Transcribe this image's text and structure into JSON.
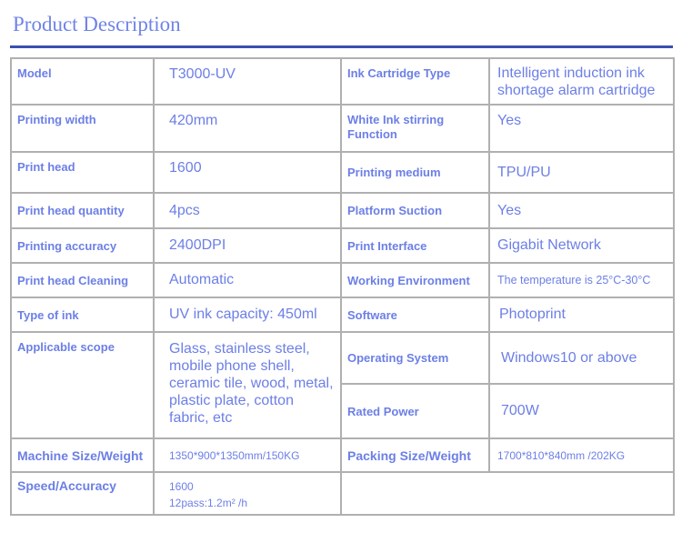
{
  "title": "Product Description",
  "rows": [
    {
      "l1": "Model",
      "v1": "T3000-UV",
      "l2": "Ink Cartridge Type",
      "v2": "Intelligent induction ink shortage alarm cartridge"
    },
    {
      "l1": "Printing width",
      "v1": "420mm",
      "l2": "White Ink stirring Function",
      "v2": "Yes"
    },
    {
      "l1": "Print head",
      "v1": "1600",
      "l2": "Printing medium",
      "v2": "TPU/PU"
    },
    {
      "l1": "Print head quantity",
      "v1": "4pcs",
      "l2": "Platform Suction",
      "v2": "Yes"
    },
    {
      "l1": "Printing accuracy",
      "v1": "2400DPI",
      "l2": "Print Interface",
      "v2": "Gigabit Network"
    },
    {
      "l1": "Print head Cleaning",
      "v1": "Automatic",
      "l2": "Working Environment",
      "v2": "The temperature is 25°C-30°C"
    },
    {
      "l1": "Type of ink",
      "v1": "UV ink capacity: 450ml",
      "l2": "Software",
      "v2": "Photoprint"
    },
    {
      "l1": "Applicable scope",
      "v1": "Glass, stainless steel, mobile phone shell, ceramic tile, wood, metal, plastic plate, cotton fabric, etc",
      "l2": "Operating System",
      "v2": "Windows10 or above"
    },
    {
      "l2": "Rated Power",
      "v2": "700W"
    },
    {
      "l1": "Machine Size/Weight",
      "v1": "1350*900*1350mm/150KG",
      "l2": "Packing Size/Weight",
      "v2": "1700*810*840mm /202KG"
    },
    {
      "l1": "Speed/Accuracy",
      "v1a": "1600",
      "v1b": "12pass:1.2m² /h"
    }
  ]
}
